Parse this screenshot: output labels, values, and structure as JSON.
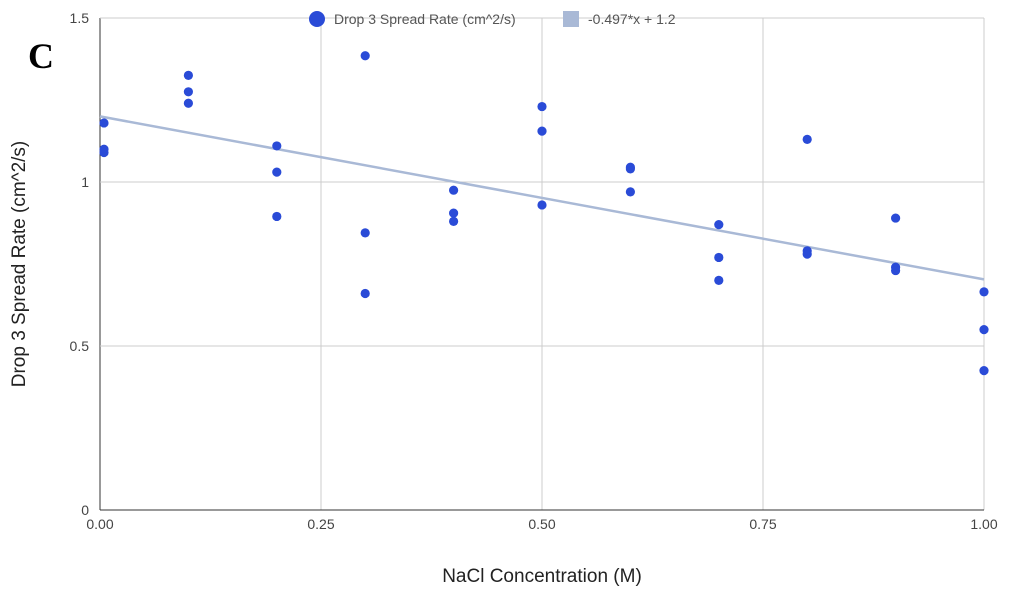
{
  "chart_data": {
    "type": "scatter",
    "panel_label": "C",
    "xlabel": "NaCl Concentration (M)",
    "ylabel": "Drop 3 Spread Rate (cm^2/s)",
    "xlim": [
      0,
      1
    ],
    "ylim": [
      0,
      1.5
    ],
    "x_ticks": [
      "0.00",
      "0.25",
      "0.50",
      "0.75",
      "1.00"
    ],
    "y_ticks": [
      "0",
      "0.5",
      "1",
      "1.5"
    ],
    "grid": true,
    "legend_position": "top",
    "series": [
      {
        "name": "Drop 3 Spread Rate (cm^2/s)",
        "color": "#2a4bd7",
        "points": [
          [
            0.0,
            1.18
          ],
          [
            0.0,
            1.1
          ],
          [
            0.0,
            1.09
          ],
          [
            0.1,
            1.325
          ],
          [
            0.1,
            1.275
          ],
          [
            0.1,
            1.24
          ],
          [
            0.2,
            1.11
          ],
          [
            0.2,
            1.03
          ],
          [
            0.2,
            0.895
          ],
          [
            0.3,
            1.385
          ],
          [
            0.3,
            0.845
          ],
          [
            0.3,
            0.66
          ],
          [
            0.4,
            0.975
          ],
          [
            0.4,
            0.905
          ],
          [
            0.4,
            0.88
          ],
          [
            0.5,
            1.23
          ],
          [
            0.5,
            1.155
          ],
          [
            0.5,
            0.93
          ],
          [
            0.6,
            1.045
          ],
          [
            0.6,
            1.04
          ],
          [
            0.6,
            0.97
          ],
          [
            0.7,
            0.87
          ],
          [
            0.7,
            0.77
          ],
          [
            0.7,
            0.7
          ],
          [
            0.8,
            1.13
          ],
          [
            0.8,
            0.79
          ],
          [
            0.8,
            0.78
          ],
          [
            0.9,
            0.89
          ],
          [
            0.9,
            0.74
          ],
          [
            0.9,
            0.73
          ],
          [
            1.0,
            0.665
          ],
          [
            1.0,
            0.55
          ],
          [
            1.0,
            0.425
          ]
        ]
      }
    ],
    "trendline": {
      "name": "-0.497*x + 1.2",
      "slope": -0.497,
      "intercept": 1.2,
      "color": "#a9b9d6"
    }
  }
}
